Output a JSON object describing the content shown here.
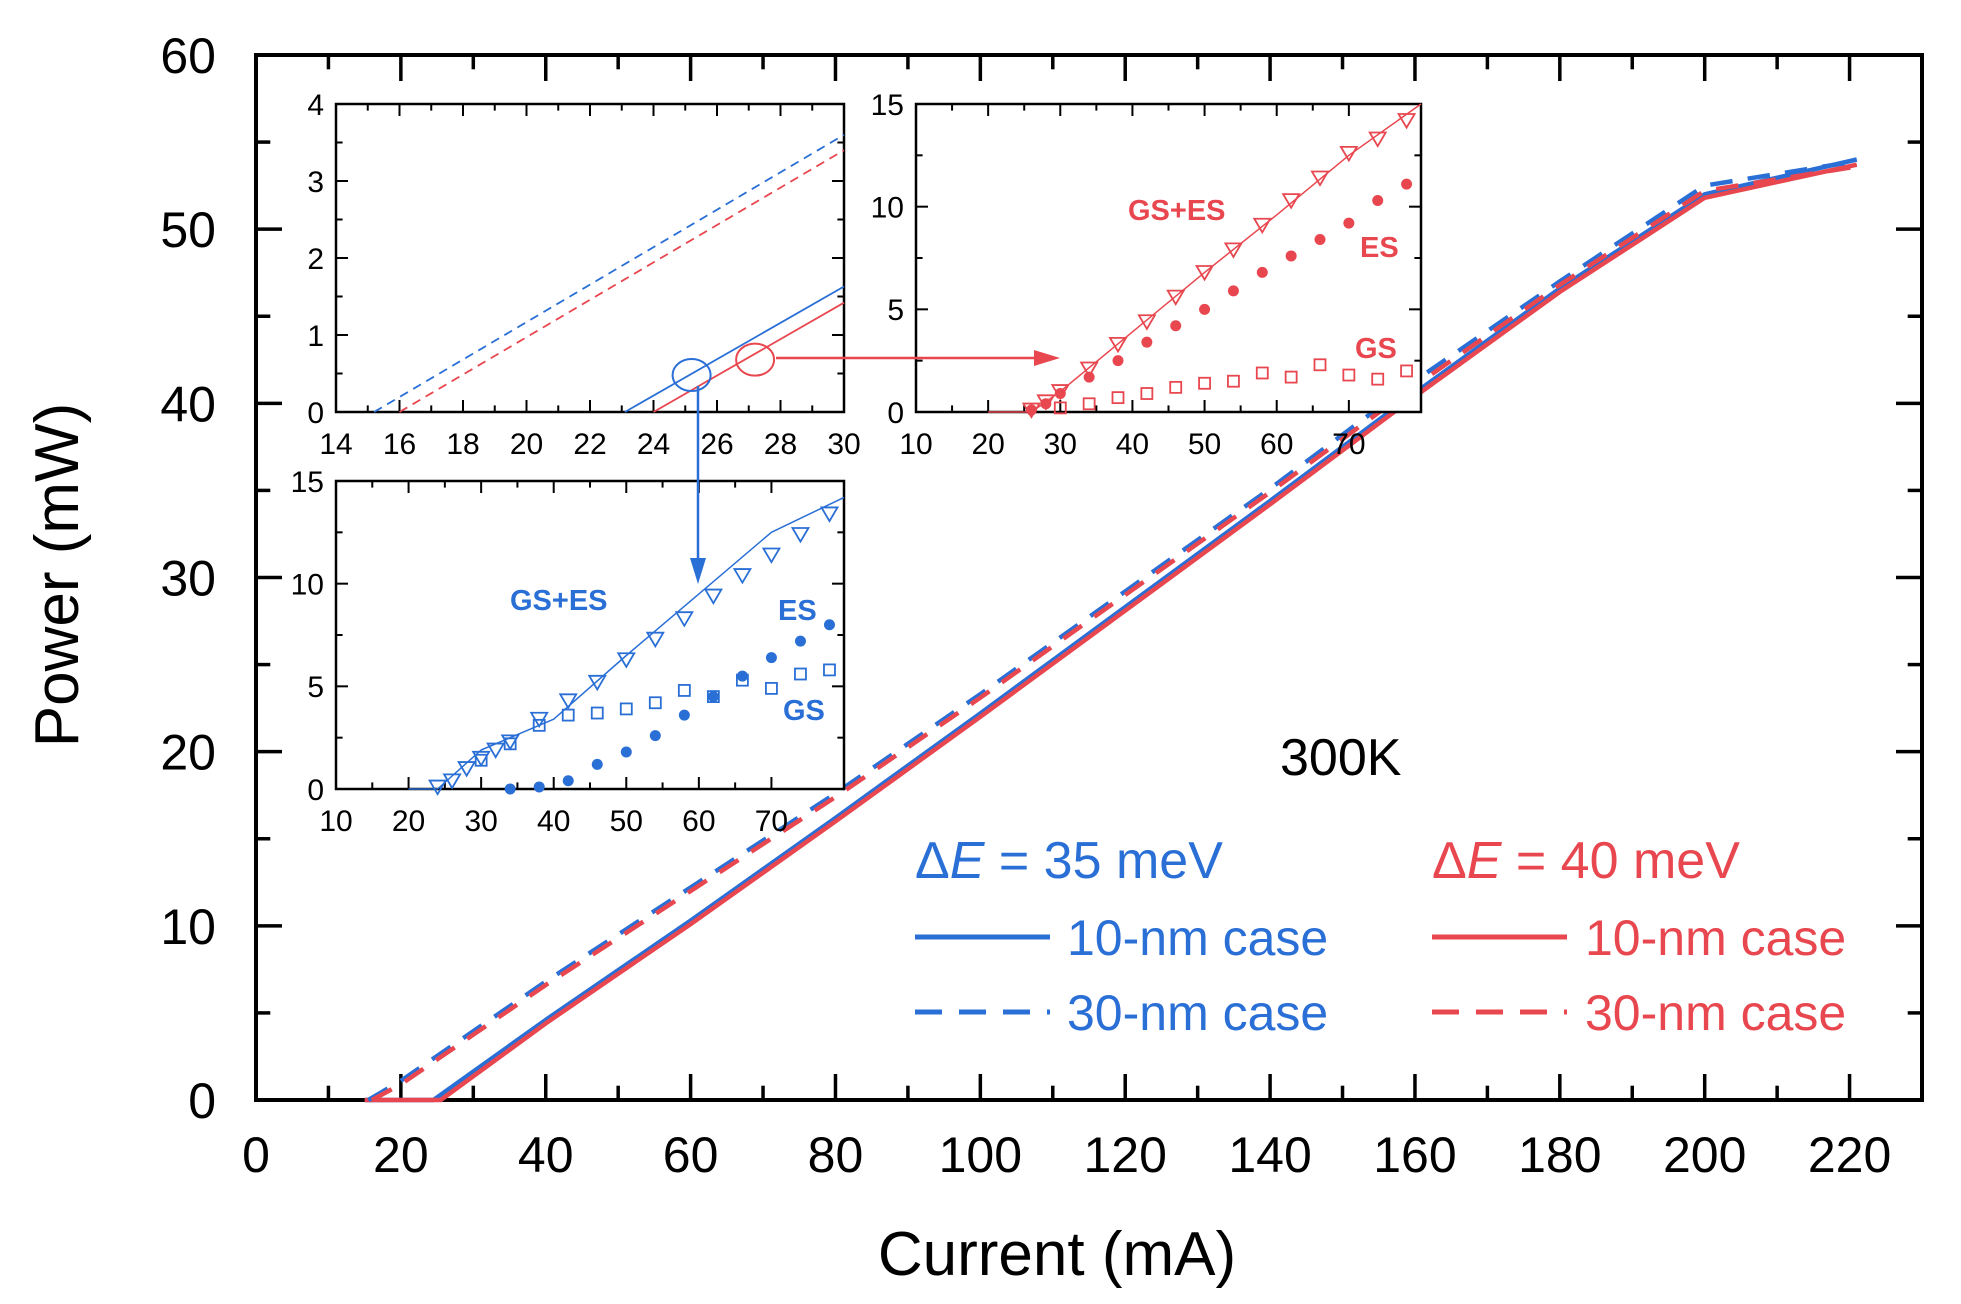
{
  "colors": {
    "blue": "#2a6fd6",
    "red": "#e8474f",
    "axis": "#000000"
  },
  "main": {
    "xlabel": "Current (mA)",
    "ylabel": "Power (mW)",
    "annotation": "300K",
    "xlim": [
      0,
      230
    ],
    "ylim": [
      0,
      60
    ],
    "xticks": [
      0,
      20,
      40,
      60,
      80,
      100,
      120,
      140,
      160,
      180,
      200,
      220
    ],
    "yticks": [
      0,
      10,
      20,
      30,
      40,
      50,
      60
    ]
  },
  "legend": {
    "blue_header_pre": "Δ",
    "blue_header_var": "E",
    "blue_header_post": " = 35 meV",
    "red_header_pre": "Δ",
    "red_header_var": "E",
    "red_header_post": " = 40 meV",
    "solid_label": "10-nm case",
    "dashed_label": "30-nm case"
  },
  "chart_data": [
    {
      "type": "line",
      "id": "main",
      "xlabel": "Current (mA)",
      "ylabel": "Power (mW)",
      "xlim": [
        0,
        230
      ],
      "ylim": [
        0,
        60
      ],
      "series": [
        {
          "name": "10-nm case",
          "group": "ΔE = 35 meV",
          "color": "blue",
          "style": "solid",
          "x": [
            15,
            24.5,
            40,
            60,
            80,
            100,
            120,
            140,
            160,
            180,
            200,
            221
          ],
          "y": [
            0,
            0,
            4.6,
            10.3,
            16.2,
            22.2,
            28.3,
            34.4,
            40.6,
            46.6,
            52.0,
            54.0
          ]
        },
        {
          "name": "10-nm case",
          "group": "ΔE = 40 meV",
          "color": "red",
          "style": "solid",
          "x": [
            15,
            25.5,
            40,
            60,
            80,
            100,
            120,
            140,
            160,
            180,
            200,
            221
          ],
          "y": [
            0,
            0,
            4.4,
            10.1,
            16.0,
            22.0,
            28.1,
            34.2,
            40.4,
            46.4,
            51.8,
            53.7
          ]
        },
        {
          "name": "30-nm case",
          "group": "ΔE = 35 meV",
          "color": "blue",
          "style": "dashed",
          "x": [
            15.5,
            20,
            40,
            60,
            80,
            100,
            120,
            140,
            160,
            180,
            200,
            221
          ],
          "y": [
            0,
            1.1,
            6.8,
            12.2,
            17.6,
            23.3,
            29.2,
            35.1,
            41.3,
            47.0,
            52.5,
            53.9
          ]
        },
        {
          "name": "30-nm case",
          "group": "ΔE = 40 meV",
          "color": "red",
          "style": "dashed",
          "x": [
            16,
            20,
            40,
            60,
            80,
            100,
            120,
            140,
            160,
            180,
            200,
            221
          ],
          "y": [
            0,
            0.9,
            6.6,
            12.0,
            17.4,
            23.1,
            29.0,
            34.9,
            41.0,
            46.8,
            52.2,
            53.6
          ]
        }
      ]
    },
    {
      "type": "line",
      "id": "inset_zoom",
      "xlim": [
        14,
        30
      ],
      "ylim": [
        0,
        4
      ],
      "xticks": [
        14,
        16,
        18,
        20,
        22,
        24,
        26,
        28,
        30
      ],
      "yticks": [
        0,
        1,
        2,
        3,
        4
      ],
      "series": [
        {
          "color": "blue",
          "style": "solid",
          "x": [
            23.1,
            30
          ],
          "y": [
            0,
            1.63
          ]
        },
        {
          "color": "red",
          "style": "solid",
          "x": [
            24.0,
            30
          ],
          "y": [
            0,
            1.42
          ]
        },
        {
          "color": "blue",
          "style": "dashed",
          "x": [
            15.2,
            30
          ],
          "y": [
            0,
            3.6
          ]
        },
        {
          "color": "red",
          "style": "dashed",
          "x": [
            16.0,
            30
          ],
          "y": [
            0,
            3.4
          ]
        }
      ],
      "markers": [
        {
          "color": "blue",
          "x": 25.2,
          "y": 0.48
        },
        {
          "color": "red",
          "x": 27.2,
          "y": 0.68
        }
      ]
    },
    {
      "type": "scatter",
      "id": "inset_red",
      "xlim": [
        10,
        80
      ],
      "ylim": [
        0,
        15
      ],
      "xticks": [
        10,
        20,
        30,
        40,
        50,
        60,
        70
      ],
      "yticks": [
        0,
        5,
        10,
        15
      ],
      "color": "red",
      "labels": {
        "total": "GS+ES",
        "es": "ES",
        "gs": "GS"
      },
      "total_line": {
        "x": [
          20,
          26,
          30,
          40,
          50,
          60,
          70,
          80
        ],
        "y": [
          0,
          0,
          1.0,
          3.9,
          6.8,
          9.6,
          12.5,
          15.0
        ]
      },
      "total": {
        "x": [
          26,
          28,
          30,
          34,
          38,
          42,
          46,
          50,
          54,
          58,
          62,
          66,
          70,
          74,
          78
        ],
        "y": [
          0.1,
          0.5,
          1.0,
          2.1,
          3.3,
          4.4,
          5.6,
          6.8,
          7.9,
          9.1,
          10.3,
          11.4,
          12.6,
          13.3,
          14.2
        ]
      },
      "es": {
        "x": [
          26,
          28,
          30,
          34,
          38,
          42,
          46,
          50,
          54,
          58,
          62,
          66,
          70,
          74,
          78
        ],
        "y": [
          0.1,
          0.4,
          0.9,
          1.7,
          2.5,
          3.4,
          4.2,
          5.0,
          5.9,
          6.8,
          7.6,
          8.4,
          9.2,
          10.3,
          11.1
        ]
      },
      "gs": {
        "x": [
          30,
          34,
          38,
          42,
          46,
          50,
          54,
          58,
          62,
          66,
          70,
          74,
          78
        ],
        "y": [
          0.2,
          0.4,
          0.7,
          0.9,
          1.2,
          1.4,
          1.5,
          1.9,
          1.7,
          2.3,
          1.8,
          1.6,
          2.0
        ]
      }
    },
    {
      "type": "scatter",
      "id": "inset_blue",
      "xlim": [
        10,
        80
      ],
      "ylim": [
        0,
        15
      ],
      "xticks": [
        10,
        20,
        30,
        40,
        50,
        60,
        70
      ],
      "yticks": [
        0,
        5,
        10,
        15
      ],
      "color": "blue",
      "labels": {
        "total": "GS+ES",
        "es": "ES",
        "gs": "GS"
      },
      "total_line": {
        "x": [
          20,
          24,
          30,
          40,
          50,
          60,
          70,
          80
        ],
        "y": [
          0,
          0,
          1.9,
          3.4,
          6.5,
          9.5,
          12.5,
          14.2
        ]
      },
      "total": {
        "x": [
          24,
          26,
          28,
          30,
          32,
          34,
          38,
          42,
          46,
          50,
          54,
          58,
          62,
          66,
          70,
          74,
          78
        ],
        "y": [
          0.1,
          0.4,
          1.0,
          1.5,
          1.9,
          2.3,
          3.4,
          4.3,
          5.2,
          6.3,
          7.3,
          8.3,
          9.4,
          10.4,
          11.4,
          12.4,
          13.4
        ]
      },
      "gs": {
        "x": [
          30,
          34,
          38,
          42,
          46,
          50,
          54,
          58,
          62,
          66,
          70,
          74,
          78
        ],
        "y": [
          1.4,
          2.2,
          3.1,
          3.6,
          3.7,
          3.9,
          4.2,
          4.8,
          4.5,
          5.3,
          4.9,
          5.6,
          5.8
        ]
      },
      "es": {
        "x": [
          34,
          38,
          42,
          46,
          50,
          54,
          58,
          62,
          66,
          70,
          74,
          78
        ],
        "y": [
          0.0,
          0.1,
          0.4,
          1.2,
          1.8,
          2.6,
          3.6,
          4.5,
          5.5,
          6.4,
          7.2,
          8.0
        ]
      }
    }
  ]
}
